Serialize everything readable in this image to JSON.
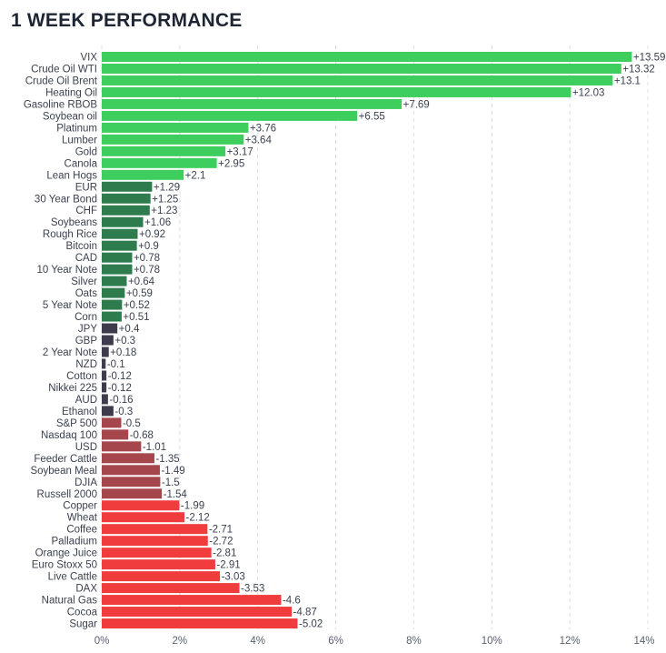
{
  "title": "1 WEEK PERFORMANCE",
  "chart_data": {
    "type": "bar",
    "orientation": "horizontal",
    "title": "1 WEEK PERFORMANCE",
    "xlabel": "",
    "ylabel": "",
    "xlim": [
      0,
      14
    ],
    "x_ticks": [
      "0%",
      "2%",
      "4%",
      "6%",
      "8%",
      "10%",
      "12%",
      "14%"
    ],
    "grid": "vertical dashed",
    "categories": [
      "VIX",
      "Crude Oil WTI",
      "Crude Oil Brent",
      "Heating Oil",
      "Gasoline RBOB",
      "Soybean oil",
      "Platinum",
      "Lumber",
      "Gold",
      "Canola",
      "Lean Hogs",
      "EUR",
      "30 Year Bond",
      "CHF",
      "Soybeans",
      "Rough Rice",
      "Bitcoin",
      "CAD",
      "10 Year Note",
      "Silver",
      "Oats",
      "5 Year Note",
      "Corn",
      "JPY",
      "GBP",
      "2 Year Note",
      "NZD",
      "Cotton",
      "Nikkei 225",
      "AUD",
      "Ethanol",
      "S&P 500",
      "Nasdaq 100",
      "USD",
      "Feeder Cattle",
      "Soybean Meal",
      "DJIA",
      "Russell 2000",
      "Copper",
      "Wheat",
      "Coffee",
      "Palladium",
      "Orange Juice",
      "Euro Stoxx 50",
      "Live Cattle",
      "DAX",
      "Natural Gas",
      "Cocoa",
      "Sugar"
    ],
    "values": [
      13.59,
      13.32,
      13.1,
      12.03,
      7.69,
      6.55,
      3.76,
      3.64,
      3.17,
      2.95,
      2.1,
      1.29,
      1.25,
      1.23,
      1.06,
      0.92,
      0.9,
      0.78,
      0.78,
      0.64,
      0.59,
      0.52,
      0.51,
      0.4,
      0.3,
      0.18,
      -0.1,
      -0.12,
      -0.12,
      -0.16,
      -0.3,
      -0.5,
      -0.68,
      -1.01,
      -1.35,
      -1.49,
      -1.5,
      -1.54,
      -1.99,
      -2.12,
      -2.71,
      -2.72,
      -2.81,
      -2.91,
      -3.03,
      -3.53,
      -4.6,
      -4.87,
      -5.02
    ],
    "value_labels": [
      "+13.59",
      "+13.32",
      "+13.1",
      "+12.03",
      "+7.69",
      "+6.55",
      "+3.76",
      "+3.64",
      "+3.17",
      "+2.95",
      "+2.1",
      "+1.29",
      "+1.25",
      "+1.23",
      "+1.06",
      "+0.92",
      "+0.9",
      "+0.78",
      "+0.78",
      "+0.64",
      "+0.59",
      "+0.52",
      "+0.51",
      "+0.4",
      "+0.3",
      "+0.18",
      "-0.1",
      "-0.12",
      "-0.12",
      "-0.16",
      "-0.3",
      "-0.5",
      "-0.68",
      "-1.01",
      "-1.35",
      "-1.49",
      "-1.5",
      "-1.54",
      "-1.99",
      "-2.12",
      "-2.71",
      "-2.72",
      "-2.81",
      "-2.91",
      "-3.03",
      "-3.53",
      "-4.6",
      "-4.87",
      "-5.02"
    ],
    "bar_length": "absolute value",
    "colors": {
      "strong_positive": "#3dce5e",
      "mild_positive": "#2e7c4e",
      "near_zero": "#3e3b4c",
      "mild_negative": "#a5464c",
      "strong_negative": "#f03c3c"
    }
  }
}
